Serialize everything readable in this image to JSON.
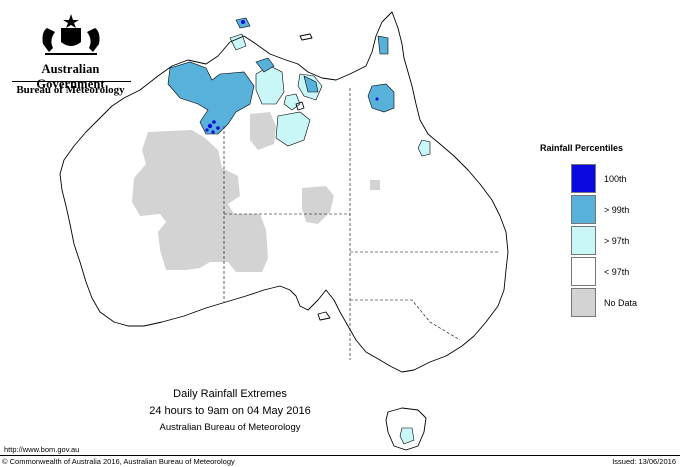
{
  "header": {
    "government": "Australian Government",
    "bureau": "Bureau of Meteorology"
  },
  "legend": {
    "title": "Rainfall Percentiles",
    "items": [
      {
        "label": "100th",
        "color": "#0a0ae0"
      },
      {
        "label": "> 99th",
        "color": "#57b1db"
      },
      {
        "label": "> 97th",
        "color": "#c9f6f6"
      },
      {
        "label": "< 97th",
        "color": "#ffffff"
      },
      {
        "label": "No Data",
        "color": "#d3d3d3"
      }
    ]
  },
  "caption": {
    "line1": "Daily Rainfall Extremes",
    "line2": "24 hours to 9am on 04 May 2016",
    "line3": "Australian Bureau of Meteorology"
  },
  "footer": {
    "url": "http://www.bom.gov.au",
    "copyright": "© Commonwealth of Australia 2016, Australian Bureau of Meteorology",
    "issued": "Issued: 13/06/2016"
  },
  "colors": {
    "pct100": "#0a0ae0",
    "pct99": "#57b1db",
    "pct97": "#c9f6f6",
    "nodata": "#d3d3d3",
    "outline": "#000000"
  }
}
